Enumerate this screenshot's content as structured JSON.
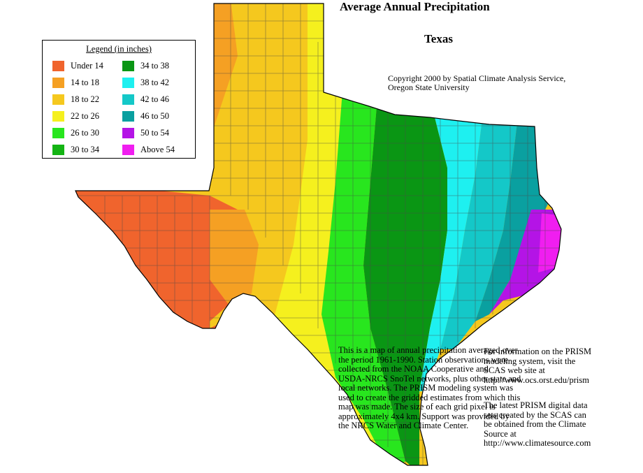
{
  "title": "Average Annual Precipitation",
  "subtitle": "Texas",
  "copyright": [
    "Copyright 2000 by Spatial Climate Analysis Service,",
    "Oregon State University"
  ],
  "legend": {
    "title": "Legend (in inches)",
    "items": [
      {
        "label": "Under 14",
        "color": "#f0642d"
      },
      {
        "label": "14 to 18",
        "color": "#f5a023"
      },
      {
        "label": "18 to 22",
        "color": "#f5c81e"
      },
      {
        "label": "22 to 26",
        "color": "#f5f01e"
      },
      {
        "label": "26 to 30",
        "color": "#28e61e"
      },
      {
        "label": "30 to 34",
        "color": "#14b414"
      },
      {
        "label": "34 to 38",
        "color": "#0a9614"
      },
      {
        "label": "38 to 42",
        "color": "#1ef0f0"
      },
      {
        "label": "42 to 46",
        "color": "#14c8c8"
      },
      {
        "label": "46 to 50",
        "color": "#0aa0a0"
      },
      {
        "label": "50 to 54",
        "color": "#b414e6"
      },
      {
        "label": "Above 54",
        "color": "#f01ef0"
      }
    ]
  },
  "notes": {
    "left": [
      "This is a map of annual precipitation averaged over",
      "the period 1961-1990. Station observations were",
      "collected from the NOAA Cooperative and",
      "USDA-NRCS SnoTel networks, plus other state and",
      "local networks.  The PRISM modeling system was",
      "used to create the gridded estimates from which this",
      "map was made.  The size of each grid pixel is",
      "approximately 4x4 km.  Support was provided by",
      "the NRCS Water and Climate Center."
    ],
    "right1": [
      "For information on the PRISM",
      "modeling system, visit the",
      "SCAS web site at",
      "http://www.ocs.orst.edu/prism"
    ],
    "right2": [
      "The latest PRISM digital data",
      "sets created by the SCAS can",
      "be obtained from the Climate",
      "Source at",
      "http://www.climatesource.com"
    ]
  }
}
